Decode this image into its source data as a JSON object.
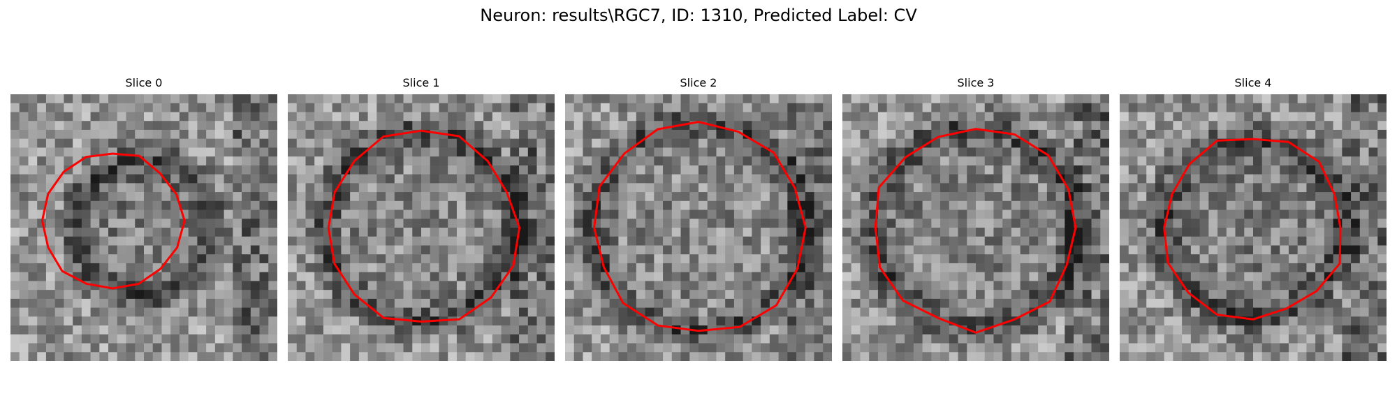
{
  "figure": {
    "title": "Neuron: results\\RGC7, ID: 1310, Predicted Label: CV"
  },
  "panels": [
    {
      "title": "Slice 0",
      "seed": 11,
      "dark_blob": 0.62,
      "contour_radius": 0.26
    },
    {
      "title": "Slice 1",
      "seed": 23,
      "dark_blob": 0.35,
      "contour_radius": 0.36
    },
    {
      "title": "Slice 2",
      "seed": 37,
      "dark_blob": 0.3,
      "contour_radius": 0.4
    },
    {
      "title": "Slice 3",
      "seed": 51,
      "dark_blob": 0.45,
      "contour_radius": 0.38
    },
    {
      "title": "Slice 4",
      "seed": 67,
      "dark_blob": 0.55,
      "contour_radius": 0.34
    }
  ],
  "colors": {
    "contour": "#ff0000",
    "background": "#ffffff"
  }
}
